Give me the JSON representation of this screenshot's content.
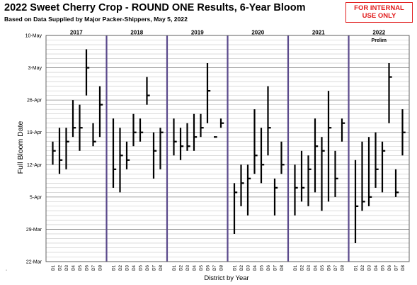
{
  "header": {
    "title": "2022 Sweet Cherry Crop - ROUND ONE Results, 6-Year Bloom",
    "subtitle": "Based on Data Supplied by Major Packer-Shippers,  May 5, 2022",
    "badge_line1": "FOR INTERNAL",
    "badge_line2": "USE ONLY",
    "badge_color": "#e11d1d"
  },
  "chart_data": {
    "type": "high-low-median",
    "xlabel": "District by Year",
    "ylabel": "Full Bloom Date",
    "ylim": [
      "2022-03-22",
      "2022-05-10"
    ],
    "yticks": [
      "10-May",
      "3-May",
      "26-Apr",
      "19-Apr",
      "12-Apr",
      "5-Apr",
      "29-Mar",
      "22-Mar"
    ],
    "grid": true,
    "separator_color": "#5b4a8c",
    "districts": [
      "D1",
      "D2",
      "D3",
      "D4",
      "D5",
      "D6",
      "D7",
      "D8"
    ],
    "groups": [
      {
        "label": "2017",
        "sublabel": "",
        "bars": [
          {
            "district": "D1",
            "low": "04-12",
            "median": "04-15",
            "high": "04-17"
          },
          {
            "district": "D2",
            "low": "04-10",
            "median": "04-13",
            "high": "04-20"
          },
          {
            "district": "D3",
            "low": "04-11",
            "median": "04-17",
            "high": "04-20"
          },
          {
            "district": "D4",
            "low": "04-18",
            "median": "04-20",
            "high": "04-26"
          },
          {
            "district": "D5",
            "low": "04-15",
            "median": "04-20",
            "high": "04-25"
          },
          {
            "district": "D6",
            "low": "04-27",
            "median": "05-03",
            "high": "05-07"
          },
          {
            "district": "D7",
            "low": "04-16",
            "median": "04-17",
            "high": "04-21"
          },
          {
            "district": "D8",
            "low": "04-18",
            "median": "04-25",
            "high": "04-29"
          }
        ]
      },
      {
        "label": "2018",
        "sublabel": "",
        "bars": [
          {
            "district": "D1",
            "low": "04-07",
            "median": "04-11",
            "high": "04-22"
          },
          {
            "district": "D2",
            "low": "04-06",
            "median": "04-14",
            "high": "04-20"
          },
          {
            "district": "D3",
            "low": "04-11",
            "median": "04-13",
            "high": "04-17"
          },
          {
            "district": "D4",
            "low": "04-16",
            "median": "04-19",
            "high": "04-23"
          },
          {
            "district": "D5",
            "low": "04-17",
            "median": "04-19",
            "high": "04-22"
          },
          {
            "district": "D6",
            "low": "04-25",
            "median": "04-27",
            "high": "05-01"
          },
          {
            "district": "D7",
            "low": "04-09",
            "median": "04-15",
            "high": "04-19"
          },
          {
            "district": "D8",
            "low": "04-11",
            "median": "04-19",
            "high": "04-20"
          }
        ]
      },
      {
        "label": "2019",
        "sublabel": "",
        "bars": [
          {
            "district": "D1",
            "low": "04-14",
            "median": "04-17",
            "high": "04-22"
          },
          {
            "district": "D2",
            "low": "04-13",
            "median": "04-16",
            "high": "04-20"
          },
          {
            "district": "D3",
            "low": "04-15",
            "median": "04-16",
            "high": "04-21"
          },
          {
            "district": "D4",
            "low": "04-15",
            "median": "04-18",
            "high": "04-23"
          },
          {
            "district": "D5",
            "low": "04-18",
            "median": "04-20",
            "high": "04-23"
          },
          {
            "district": "D6",
            "low": "04-21",
            "median": "04-28",
            "high": "05-04"
          },
          {
            "district": "D7",
            "low": "04-18",
            "median": "04-18",
            "high": "04-18"
          },
          {
            "district": "D8",
            "low": "04-20",
            "median": "04-21",
            "high": "04-22"
          }
        ]
      },
      {
        "label": "2020",
        "sublabel": "",
        "bars": [
          {
            "district": "D1",
            "low": "03-28",
            "median": "04-06",
            "high": "04-08"
          },
          {
            "district": "D2",
            "low": "04-03",
            "median": "04-08",
            "high": "04-12"
          },
          {
            "district": "D3",
            "low": "04-01",
            "median": "04-09",
            "high": "04-12"
          },
          {
            "district": "D4",
            "low": "04-10",
            "median": "04-14",
            "high": "04-24"
          },
          {
            "district": "D5",
            "low": "04-08",
            "median": "04-12",
            "high": "04-20"
          },
          {
            "district": "D6",
            "low": "04-14",
            "median": "04-20",
            "high": "04-29"
          },
          {
            "district": "D7",
            "low": "04-01",
            "median": "04-07",
            "high": "04-09"
          },
          {
            "district": "D8",
            "low": "04-10",
            "median": "04-12",
            "high": "04-17"
          }
        ]
      },
      {
        "label": "2021",
        "sublabel": "",
        "bars": [
          {
            "district": "D1",
            "low": "04-01",
            "median": "04-07",
            "high": "04-12"
          },
          {
            "district": "D2",
            "low": "04-04",
            "median": "04-07",
            "high": "04-15"
          },
          {
            "district": "D3",
            "low": "04-03",
            "median": "04-11",
            "high": "04-14"
          },
          {
            "district": "D4",
            "low": "04-06",
            "median": "04-16",
            "high": "04-22"
          },
          {
            "district": "D5",
            "low": "04-02",
            "median": "04-15",
            "high": "04-18"
          },
          {
            "district": "D6",
            "low": "04-04",
            "median": "04-20",
            "high": "04-28"
          },
          {
            "district": "D7",
            "low": "04-05",
            "median": "04-09",
            "high": "04-15"
          },
          {
            "district": "D8",
            "low": "04-17",
            "median": "04-21",
            "high": "04-22"
          }
        ]
      },
      {
        "label": "2022",
        "sublabel": "Prelim",
        "bars": [
          {
            "district": "D1",
            "low": "03-26",
            "median": "04-03",
            "high": "04-13"
          },
          {
            "district": "D2",
            "low": "04-02",
            "median": "04-04",
            "high": "04-17"
          },
          {
            "district": "D3",
            "low": "04-03",
            "median": "04-05",
            "high": "04-18"
          },
          {
            "district": "D4",
            "low": "04-07",
            "median": "04-11",
            "high": "04-19"
          },
          {
            "district": "D5",
            "low": "04-06",
            "median": "04-15",
            "high": "04-17"
          },
          {
            "district": "D6",
            "low": "04-21",
            "median": "05-01",
            "high": "05-04"
          },
          {
            "district": "D7",
            "low": "04-05",
            "median": "04-06",
            "high": "04-11"
          },
          {
            "district": "D8",
            "low": "04-14",
            "median": "04-19",
            "high": "04-24"
          }
        ]
      }
    ]
  }
}
